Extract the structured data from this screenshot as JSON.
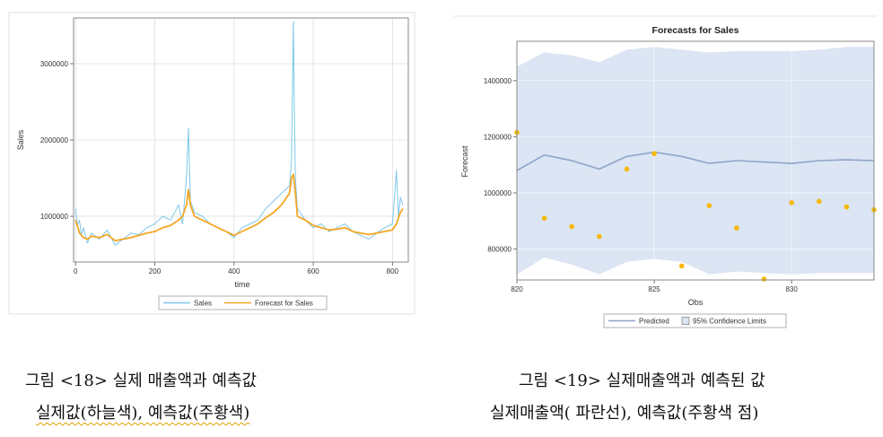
{
  "figures": [
    {
      "chart_data": {
        "type": "line",
        "title": "",
        "xlabel": "time",
        "ylabel": "Sales",
        "xlim": [
          -5,
          840
        ],
        "ylim": [
          400000,
          3600000
        ],
        "xticks": [
          0,
          200,
          400,
          600,
          800
        ],
        "yticks": [
          1000000,
          2000000,
          3000000
        ],
        "ytick_labels": [
          "1000000",
          "2000000",
          "3000000"
        ],
        "grid": true,
        "legend": "bottom",
        "series": [
          {
            "name": "Sales",
            "color": "#7ec8ea",
            "x": [
              0,
              5,
              10,
              15,
              20,
              30,
              40,
              60,
              80,
              100,
              120,
              140,
              160,
              180,
              200,
              220,
              240,
              260,
              270,
              280,
              285,
              290,
              300,
              320,
              340,
              360,
              380,
              400,
              420,
              440,
              460,
              480,
              500,
              520,
              540,
              545,
              548,
              550,
              552,
              555,
              560,
              580,
              600,
              620,
              640,
              660,
              680,
              700,
              720,
              740,
              760,
              780,
              800,
              810,
              815,
              820,
              826
            ],
            "y": [
              1100000,
              880000,
              950000,
              750000,
              850000,
              650000,
              780000,
              700000,
              820000,
              620000,
              700000,
              780000,
              760000,
              850000,
              900000,
              1000000,
              950000,
              1150000,
              900000,
              1500000,
              2150000,
              1200000,
              1050000,
              1000000,
              900000,
              850000,
              800000,
              720000,
              850000,
              900000,
              950000,
              1100000,
              1200000,
              1300000,
              1400000,
              1700000,
              2800000,
              3550000,
              2500000,
              1500000,
              1100000,
              950000,
              850000,
              900000,
              800000,
              850000,
              900000,
              800000,
              750000,
              700000,
              780000,
              850000,
              900000,
              1600000,
              1000000,
              1250000,
              1150000
            ]
          },
          {
            "name": "Forecast for Sales",
            "color": "#f5a623",
            "x": [
              0,
              10,
              20,
              30,
              40,
              60,
              80,
              100,
              120,
              140,
              160,
              180,
              200,
              220,
              240,
              260,
              270,
              280,
              285,
              290,
              300,
              320,
              340,
              360,
              380,
              400,
              420,
              440,
              460,
              480,
              500,
              520,
              540,
              545,
              550,
              555,
              560,
              580,
              600,
              620,
              640,
              660,
              680,
              700,
              720,
              740,
              760,
              780,
              800,
              810,
              820,
              826
            ],
            "y": [
              950000,
              780000,
              720000,
              700000,
              740000,
              720000,
              760000,
              680000,
              700000,
              720000,
              750000,
              780000,
              800000,
              850000,
              880000,
              950000,
              1000000,
              1150000,
              1350000,
              1150000,
              1000000,
              950000,
              900000,
              850000,
              800000,
              750000,
              800000,
              850000,
              900000,
              980000,
              1050000,
              1150000,
              1300000,
              1500000,
              1550000,
              1300000,
              1000000,
              950000,
              880000,
              850000,
              820000,
              830000,
              850000,
              800000,
              780000,
              760000,
              780000,
              800000,
              820000,
              900000,
              1050000,
              1100000
            ]
          }
        ]
      },
      "legend": [
        "Sales",
        "Forecast for Sales"
      ],
      "caption_line1": "그림 <18> 실제 매출액과 예측값",
      "caption_line2": "실제값(하늘색), 예측값(주황색)"
    },
    {
      "chart_data": {
        "type": "line",
        "title": "Forecasts for Sales",
        "xlabel": "Obs",
        "ylabel": "Forecast",
        "xlim": [
          820,
          833
        ],
        "ylim": [
          690000,
          1540000
        ],
        "xticks": [
          820,
          825,
          830
        ],
        "yticks": [
          800000,
          1000000,
          1200000,
          1400000
        ],
        "ytick_labels": [
          "800000",
          "1000000",
          "1200000",
          "1400000"
        ],
        "grid": true,
        "legend": "bottom",
        "predicted": {
          "name": "Predicted",
          "color": "#8ea5c8",
          "x": [
            820,
            821,
            822,
            823,
            824,
            825,
            826,
            827,
            828,
            829,
            830,
            831,
            832,
            833
          ],
          "y": [
            1080000,
            1135000,
            1115000,
            1085000,
            1130000,
            1145000,
            1130000,
            1105000,
            1115000,
            1110000,
            1105000,
            1115000,
            1118000,
            1115000
          ]
        },
        "confidence": {
          "name": "95% Confidence Limits",
          "color": "#dbe5f3",
          "x": [
            820,
            821,
            822,
            823,
            824,
            825,
            826,
            827,
            828,
            829,
            830,
            831,
            832,
            833
          ],
          "upper": [
            1450000,
            1500000,
            1490000,
            1465000,
            1510000,
            1520000,
            1510000,
            1500000,
            1505000,
            1505000,
            1505000,
            1510000,
            1520000,
            1520000
          ],
          "lower": [
            710000,
            770000,
            745000,
            710000,
            755000,
            765000,
            755000,
            710000,
            720000,
            715000,
            710000,
            715000,
            715000,
            715000
          ]
        },
        "actual": {
          "color": "#f5b800",
          "x": [
            820,
            821,
            822,
            823,
            824,
            825,
            826,
            827,
            828,
            829,
            830,
            831,
            832,
            833
          ],
          "y": [
            1215000,
            910000,
            880000,
            845000,
            1085000,
            1140000,
            740000,
            955000,
            875000,
            685000,
            965000,
            970000,
            950000,
            940000
          ]
        }
      },
      "legend": [
        "Predicted",
        "95% Confidence Limits"
      ],
      "caption_line1": "그림 <19> 실제매출액과 예측된 값",
      "caption_line2": "실제매출액( 파란선), 예측값(주황색 점)"
    }
  ]
}
